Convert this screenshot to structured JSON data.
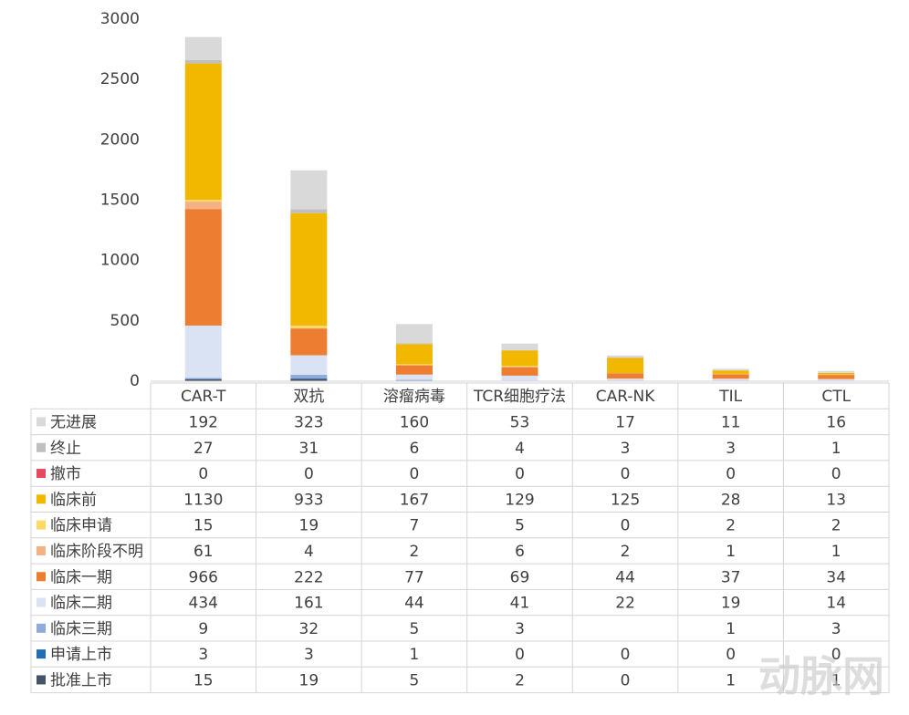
{
  "chart_data": {
    "type": "stacked_bar",
    "categories": [
      "CAR-T",
      "双抗",
      "溶瘤病毒",
      "TCR细胞疗法",
      "CAR-NK",
      "TIL",
      "CTL"
    ],
    "ylim": [
      0,
      3000
    ],
    "yticks": [
      0,
      500,
      1000,
      1500,
      2000,
      2500,
      3000
    ],
    "series": [
      {
        "name": "无进展",
        "color": "#d9d9d9",
        "values": [
          192,
          323,
          160,
          53,
          17,
          11,
          16
        ]
      },
      {
        "name": "终止",
        "color": "#bfbfbf",
        "values": [
          27,
          31,
          6,
          4,
          3,
          3,
          1
        ]
      },
      {
        "name": "撤市",
        "color": "#e8485f",
        "values": [
          0,
          0,
          0,
          0,
          0,
          0,
          0
        ]
      },
      {
        "name": "临床前",
        "color": "#f2b800",
        "values": [
          1130,
          933,
          167,
          129,
          125,
          28,
          13
        ]
      },
      {
        "name": "临床申请",
        "color": "#ffd966",
        "values": [
          15,
          19,
          7,
          5,
          0,
          2,
          2
        ]
      },
      {
        "name": "临床阶段不明",
        "color": "#f4b183",
        "values": [
          61,
          4,
          2,
          6,
          2,
          1,
          1
        ]
      },
      {
        "name": "临床一期",
        "color": "#ed7d31",
        "values": [
          966,
          222,
          77,
          69,
          44,
          37,
          34
        ]
      },
      {
        "name": "临床二期",
        "color": "#dae3f3",
        "values": [
          434,
          161,
          44,
          41,
          22,
          19,
          14
        ]
      },
      {
        "name": "临床三期",
        "color": "#8faadc",
        "values": [
          9,
          32,
          5,
          3,
          null,
          1,
          3
        ]
      },
      {
        "name": "申请上市",
        "color": "#1f6fb2",
        "values": [
          3,
          3,
          1,
          0,
          0,
          0,
          0
        ]
      },
      {
        "name": "批准上市",
        "color": "#44546a",
        "values": [
          15,
          19,
          5,
          2,
          0,
          1,
          1
        ]
      }
    ],
    "watermark": "动脉网"
  }
}
